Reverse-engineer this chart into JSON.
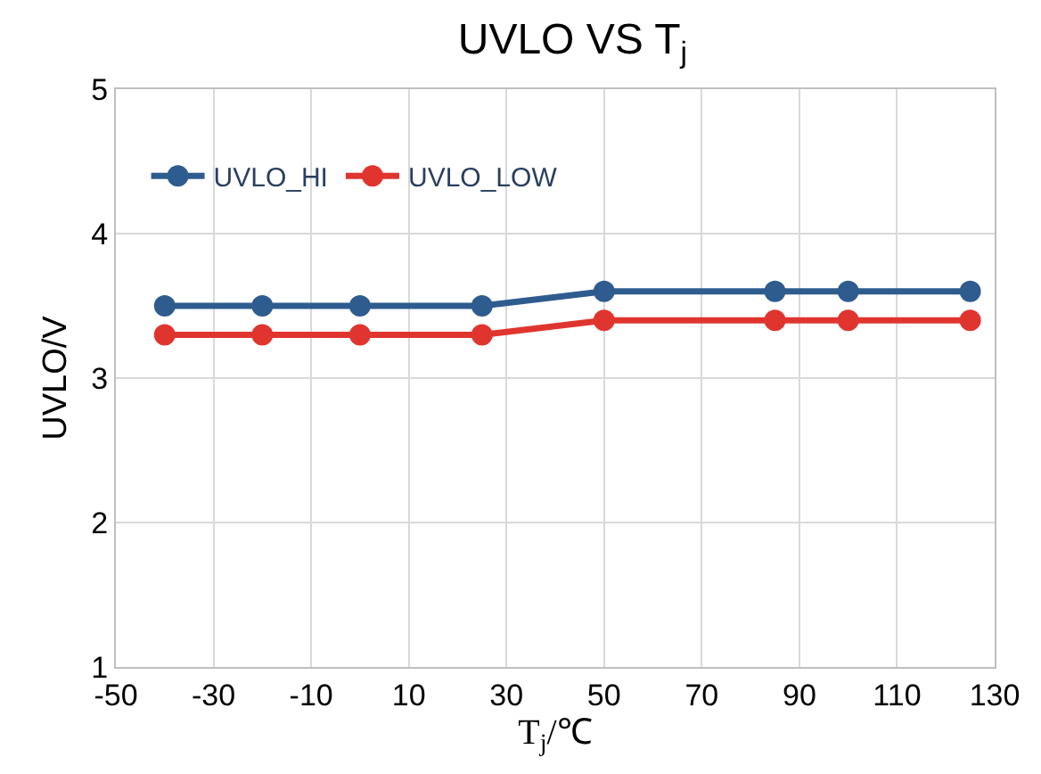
{
  "chart_data": {
    "type": "line",
    "title": "UVLO VS T$_{j}$",
    "xlabel": "T$_{j}$/℃",
    "ylabel": "UVLO/V",
    "x": [
      -40,
      -20,
      0,
      25,
      50,
      85,
      100,
      125
    ],
    "series": [
      {
        "name": "UVLO_HI",
        "color": "#2f5c8f",
        "values": [
          3.5,
          3.5,
          3.5,
          3.5,
          3.6,
          3.6,
          3.6,
          3.6
        ]
      },
      {
        "name": "UVLO_LOW",
        "color": "#e0352f",
        "values": [
          3.3,
          3.3,
          3.3,
          3.3,
          3.4,
          3.4,
          3.4,
          3.4
        ]
      }
    ],
    "xlim": [
      -50,
      130
    ],
    "xticks": [
      -50,
      -30,
      -10,
      10,
      30,
      50,
      70,
      90,
      110,
      130
    ],
    "ylim": [
      1,
      5
    ],
    "yticks": [
      1,
      2,
      3,
      4,
      5
    ],
    "grid": true,
    "legend": "top left",
    "marker": "circle",
    "line_style": "solid"
  }
}
